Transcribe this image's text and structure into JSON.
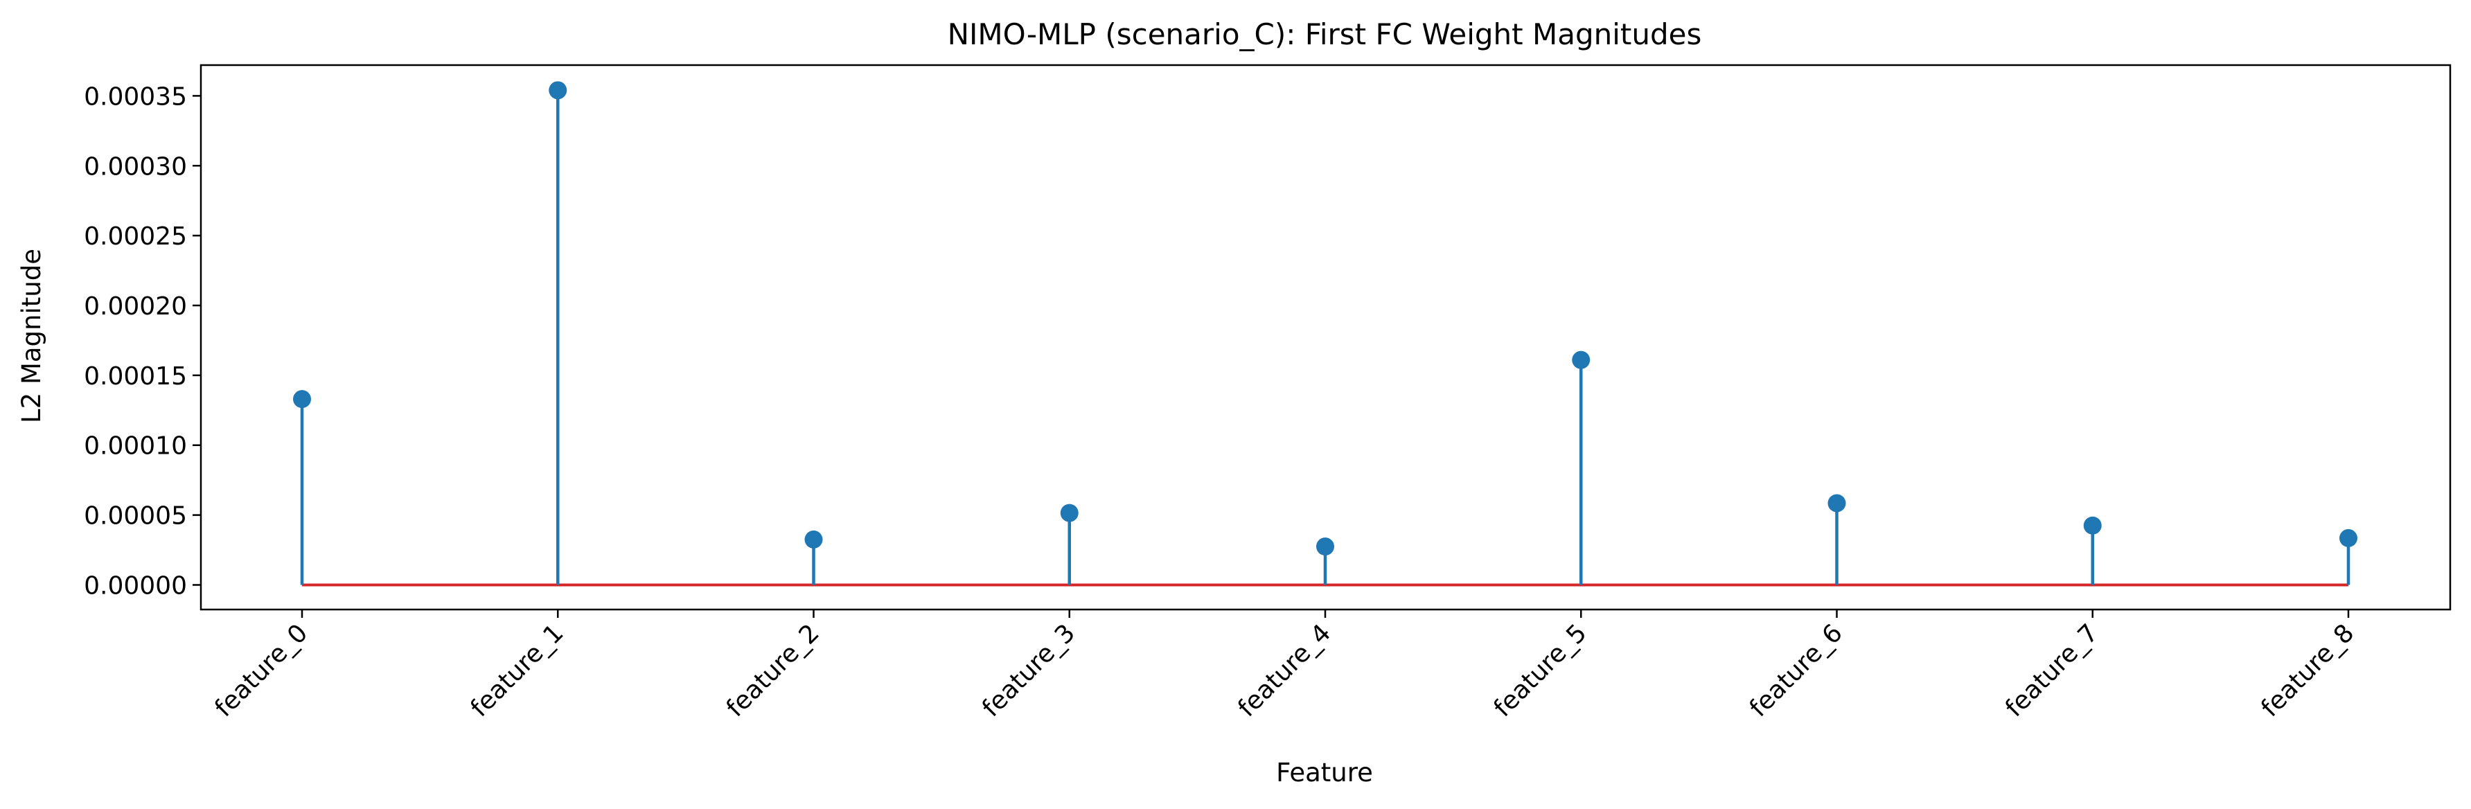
{
  "chart_data": {
    "type": "stem",
    "title": "NIMO-MLP (scenario_C): First FC Weight Magnitudes",
    "xlabel": "Feature",
    "ylabel": "L2 Magnitude",
    "categories": [
      "feature_0",
      "feature_1",
      "feature_2",
      "feature_3",
      "feature_4",
      "feature_5",
      "feature_6",
      "feature_7",
      "feature_8"
    ],
    "values": [
      0.000133,
      0.000354,
      3.25e-05,
      5.15e-05,
      2.75e-05,
      0.000161,
      5.85e-05,
      4.25e-05,
      3.35e-05
    ],
    "ylim": [
      -1.76e-05,
      0.000372
    ],
    "yticks": [
      0,
      5e-05,
      0.0001,
      0.00015,
      0.0002,
      0.00025,
      0.0003,
      0.00035
    ],
    "ytick_labels": [
      "0.00000",
      "0.00005",
      "0.00010",
      "0.00015",
      "0.00020",
      "0.00025",
      "0.00030",
      "0.00035"
    ],
    "grid": false,
    "colors": {
      "stem": "#1f77b4",
      "baseline": "#d62728",
      "axes": "#000000"
    }
  }
}
